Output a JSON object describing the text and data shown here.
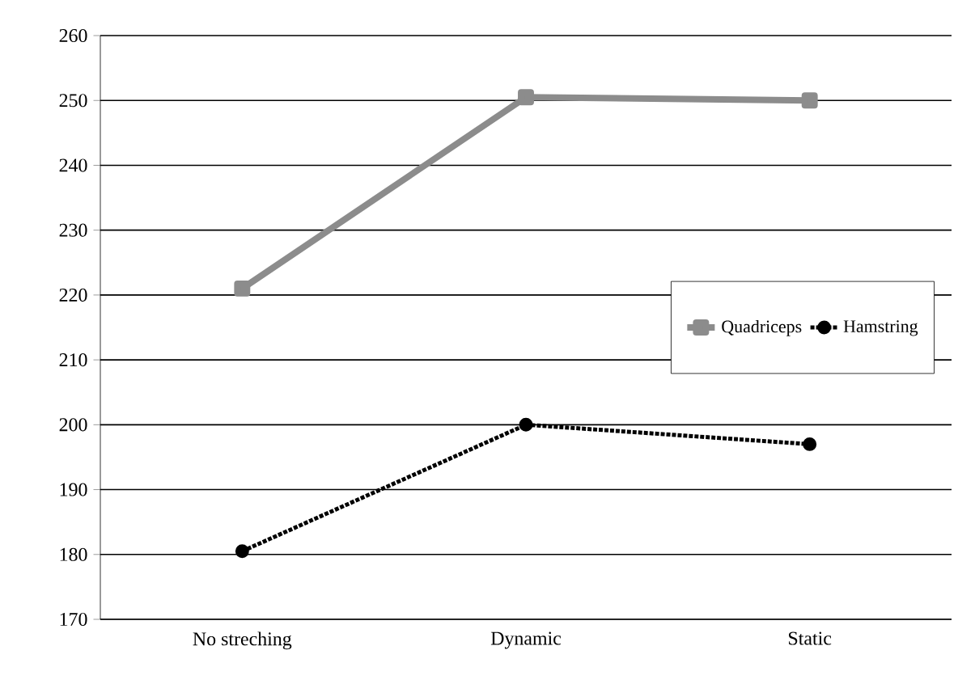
{
  "chart_data": {
    "type": "line",
    "categories": [
      "No streching",
      "Dynamic",
      "Static"
    ],
    "series": [
      {
        "name": "Quadriceps",
        "color": "#8c8c8c",
        "values": [
          221,
          250.5,
          250
        ],
        "marker": "square",
        "line_style": "solid"
      },
      {
        "name": "Hamstring",
        "color": "#000000",
        "values": [
          180.5,
          200,
          197
        ],
        "marker": "circle",
        "line_style": "dotted"
      }
    ],
    "ylim": [
      170,
      260
    ],
    "yticks": [
      170,
      180,
      190,
      200,
      210,
      220,
      230,
      240,
      250,
      260
    ],
    "grid": "y",
    "legend": "right"
  }
}
